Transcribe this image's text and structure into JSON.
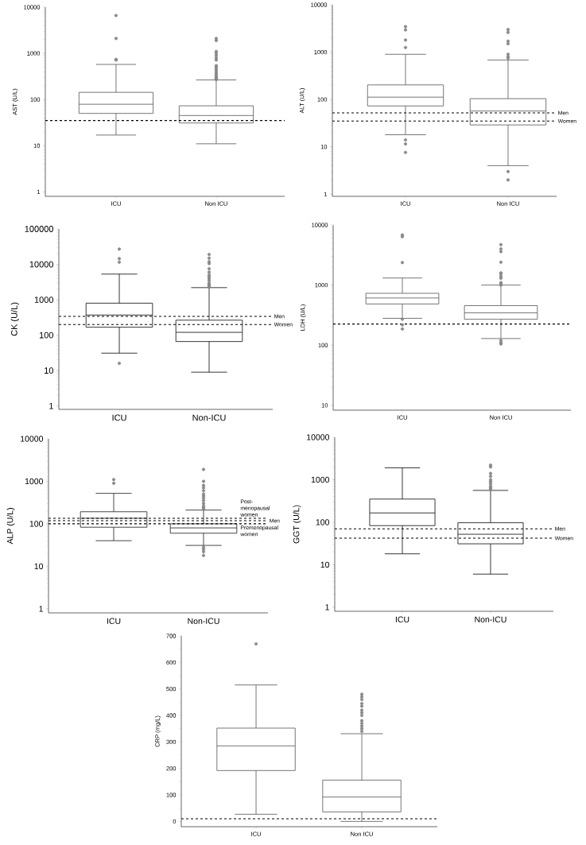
{
  "chart_data": [
    {
      "type": "box",
      "ylabel": "AST (U/L)",
      "categories": [
        "ICU",
        "Non ICU"
      ],
      "log": true,
      "ylim": [
        0.8,
        10000
      ],
      "yticks": [
        1,
        10,
        100,
        1000,
        10000
      ],
      "marker": "circle",
      "series": [
        {
          "color": "#666666",
          "boxes": [
            {
              "low": 17,
              "q1": 50,
              "median": 79,
              "q3": 143,
              "high": 575,
              "outliers": [
                720,
                740,
                2100,
                6600
              ]
            },
            {
              "low": 11,
              "q1": 31,
              "median": 45,
              "q3": 73,
              "high": 265,
              "outliers": [
                270,
                280,
                300,
                320,
                350,
                380,
                420,
                460,
                500,
                540,
                720,
                800,
                900,
                1000,
                1100,
                1900,
                2100
              ]
            }
          ]
        }
      ],
      "ref_lines": [
        {
          "axis": "y",
          "value": 35,
          "line_style": "dashed"
        }
      ]
    },
    {
      "type": "box",
      "ylabel": "ALT (U/L)",
      "categories": [
        "ICU",
        "Non ICU"
      ],
      "log": true,
      "ylim": [
        0.9,
        10000
      ],
      "yticks": [
        1,
        10,
        100,
        1000,
        10000
      ],
      "marker": "circle",
      "series": [
        {
          "color": "#666666",
          "boxes": [
            {
              "low": 18,
              "q1": 73,
              "median": 112,
              "q3": 203,
              "high": 900,
              "outliers": [
                7.6,
                11.5,
                14,
                1250,
                1800,
                2950,
                3450
              ]
            },
            {
              "low": 4,
              "q1": 29,
              "median": 57,
              "q3": 104,
              "high": 680,
              "outliers": [
                2,
                3,
                750,
                800,
                900,
                1500,
                1700,
                2600,
                3000
              ]
            }
          ]
        }
      ],
      "ref_lines": [
        {
          "axis": "y",
          "value": 52,
          "label": "Men",
          "line_style": "dashed"
        },
        {
          "axis": "y",
          "value": 35,
          "label": "Women",
          "line_style": "dashed"
        }
      ]
    },
    {
      "type": "box",
      "ylabel": "CK (U/L)",
      "categories": [
        "ICU",
        "Non-ICU"
      ],
      "log": true,
      "ylim": [
        0.8,
        100000
      ],
      "yticks": [
        1,
        10,
        100,
        1000,
        10000,
        100000
      ],
      "marker": "circle",
      "series": [
        {
          "color": "#222222",
          "boxes": [
            {
              "low": 31,
              "q1": 168,
              "median": 370,
              "q3": 800,
              "high": 5300,
              "outliers": [
                16,
                11500,
                14500,
                27000
              ]
            },
            {
              "low": 9,
              "q1": 66,
              "median": 120,
              "q3": 265,
              "high": 2200,
              "outliers": [
                2300,
                2500,
                2700,
                3000,
                3500,
                4000,
                4500,
                5000,
                6000,
                7500,
                10500,
                12000,
                15000,
                19000
              ]
            }
          ]
        }
      ],
      "ref_lines": [
        {
          "axis": "y",
          "value": 340,
          "label": "Men",
          "line_style": "dashed"
        },
        {
          "axis": "y",
          "value": 200,
          "label": "Women",
          "line_style": "dashed"
        }
      ]
    },
    {
      "type": "box",
      "ylabel": "LDH (U/L)",
      "categories": [
        "ICU",
        "Non ICU"
      ],
      "log": true,
      "ylim": [
        8.3,
        10000
      ],
      "yticks": [
        10,
        100,
        1000,
        10000
      ],
      "marker": "circle",
      "series": [
        {
          "color": "#666666",
          "boxes": [
            {
              "low": 280,
              "q1": 485,
              "median": 610,
              "q3": 730,
              "high": 1310,
              "outliers": [
                186,
                218,
                270,
                2370,
                6400,
                6800
              ]
            },
            {
              "low": 129,
              "q1": 270,
              "median": 345,
              "q3": 455,
              "high": 1000,
              "outliers": [
                105,
                110,
                120,
                1000,
                1050,
                1100,
                1300,
                1400,
                1550,
                1600,
                2400,
                3600,
                4000,
                4700
              ]
            }
          ]
        }
      ],
      "ref_lines": [
        {
          "axis": "y",
          "value": 225,
          "line_style": "dashed"
        }
      ]
    },
    {
      "type": "box",
      "ylabel": "ALP (U/L)",
      "categories": [
        "ICU",
        "Non-ICU"
      ],
      "log": true,
      "ylim": [
        0.8,
        10000
      ],
      "yticks": [
        1,
        10,
        100,
        1000,
        10000
      ],
      "marker": "circle",
      "series": [
        {
          "color": "#333333",
          "boxes": [
            {
              "low": 40,
              "q1": 83,
              "median": 135,
              "q3": 192,
              "high": 520,
              "outliers": [
                900,
                1100
              ]
            },
            {
              "low": 31,
              "q1": 60,
              "median": 80,
              "q3": 100,
              "high": 210,
              "outliers": [
                18,
                22,
                25,
                28,
                220,
                240,
                260,
                300,
                350,
                400,
                450,
                500,
                600,
                700,
                800,
                1000,
                1900
              ]
            }
          ]
        }
      ],
      "ref_lines": [
        {
          "axis": "y",
          "value": 135,
          "label": "Post-menopausal women",
          "line_style": "dashed"
        },
        {
          "axis": "y",
          "value": 118,
          "label": "Men",
          "line_style": "dashed"
        },
        {
          "axis": "y",
          "value": 100,
          "label": "Premenopausal women",
          "line_style": "dashed"
        }
      ]
    },
    {
      "type": "box",
      "ylabel": "GGT (U/L)",
      "categories": [
        "ICU",
        "Non-ICU"
      ],
      "log": true,
      "ylim": [
        0.8,
        10000
      ],
      "yticks": [
        1,
        10,
        100,
        1000,
        10000
      ],
      "marker": "circle",
      "series": [
        {
          "color": "#222222",
          "boxes": [
            {
              "low": 18,
              "q1": 83,
              "median": 165,
              "q3": 350,
              "high": 1900
            },
            {
              "low": 6,
              "q1": 31,
              "median": 52,
              "q3": 97,
              "high": 560,
              "outliers": [
                600,
                650,
                700,
                800,
                900,
                1000,
                1200,
                1400,
                2000,
                2200
              ]
            }
          ]
        }
      ],
      "ref_lines": [
        {
          "axis": "y",
          "value": 70,
          "label": "Men",
          "line_style": "dashed"
        },
        {
          "axis": "y",
          "value": 42,
          "label": "Women",
          "line_style": "dashed"
        }
      ]
    },
    {
      "type": "box",
      "ylabel": "CRP (mg/L)",
      "categories": [
        "ICU",
        "Non ICU"
      ],
      "ylim": [
        -20,
        700
      ],
      "yticks": [
        0,
        100,
        200,
        300,
        400,
        500,
        600,
        700
      ],
      "marker": "circle",
      "series": [
        {
          "color": "#666666",
          "boxes": [
            {
              "low": 27,
              "q1": 192,
              "median": 285,
              "q3": 352,
              "high": 515,
              "outliers": [
                670
              ]
            },
            {
              "low": 0,
              "q1": 36,
              "median": 92,
              "q3": 156,
              "high": 331,
              "outliers": [
                340,
                350,
                360,
                370,
                380,
                400,
                410,
                420,
                435,
                445,
                460,
                470,
                480
              ]
            }
          ]
        }
      ],
      "ref_lines": [
        {
          "axis": "y",
          "value": 10,
          "line_style": "dashed"
        }
      ]
    }
  ]
}
